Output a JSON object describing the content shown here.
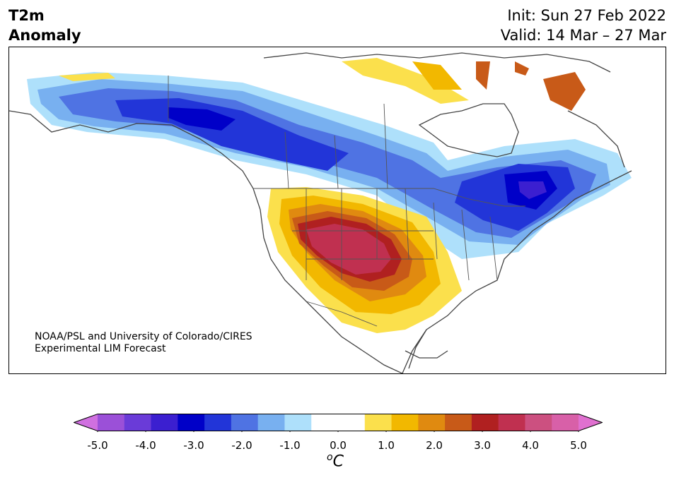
{
  "title": {
    "line1": "T2m",
    "line2": "Anomaly"
  },
  "dates": {
    "init": "Init: Sun 27 Feb 2022",
    "valid": "Valid: 14 Mar – 27 Mar"
  },
  "credit": {
    "line1": "NOAA/PSL and University of Colorado/CIRES",
    "line2": "Experimental LIM Forecast"
  },
  "colorbar": {
    "ticks": [
      "-5.0",
      "-4.0",
      "-3.0",
      "-2.0",
      "-1.0",
      "0.0",
      "1.0",
      "2.0",
      "3.0",
      "4.0",
      "5.0"
    ],
    "unit": "C",
    "unit_sup": "o",
    "colors": [
      "#d070e0",
      "#9b50d8",
      "#6a3bd8",
      "#3b1fd0",
      "#0000c8",
      "#2235d8",
      "#4f73e3",
      "#78b0f0",
      "#aee0fb",
      "#ffffff",
      "#ffffff",
      "#fbe04c",
      "#f2b800",
      "#e08a10",
      "#c85a18",
      "#b02020",
      "#c03050",
      "#cc5080",
      "#d860a8",
      "#e070d0"
    ]
  },
  "legend_colors": {
    "strong_cold": "#0000c8",
    "cold": "#2235d8",
    "cool": "#4f73e3",
    "light_cool": "#78b0f0",
    "pale_cool": "#aee0fb",
    "pale_warm": "#fbe04c",
    "warm": "#f2b800",
    "warmer": "#e08a10",
    "hot": "#c85a18",
    "very_hot": "#b02020",
    "extreme": "#c03050"
  }
}
